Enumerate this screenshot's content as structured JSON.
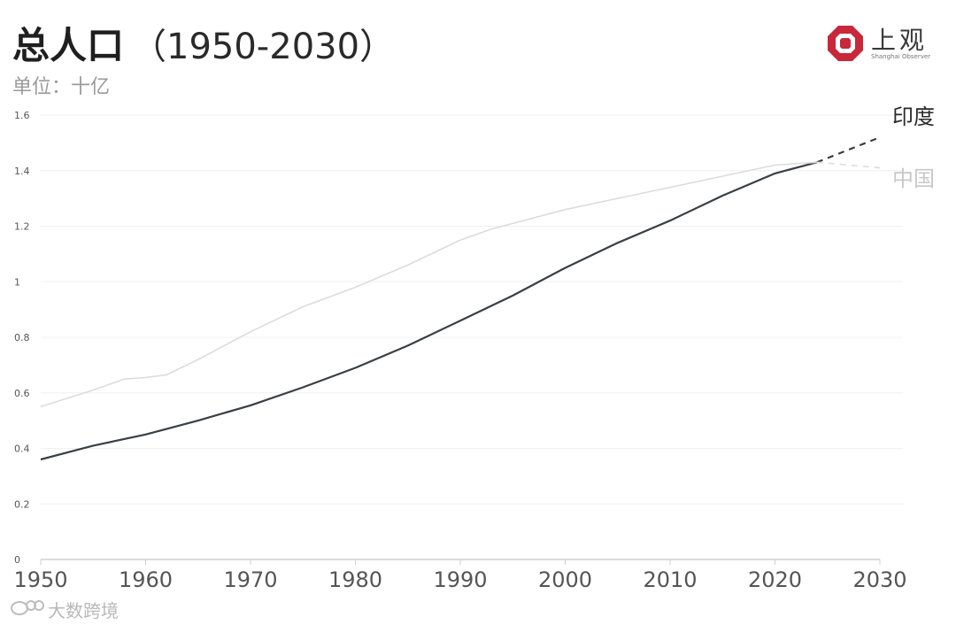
{
  "header": {
    "title": "总人口",
    "title_range": "（1950-2030）",
    "unit": "单位：十亿"
  },
  "logo": {
    "text": "上观",
    "subtext": "Shanghai Observer",
    "color": "#c8283a"
  },
  "watermark": {
    "text": "大数跨境"
  },
  "chart_data": {
    "type": "line",
    "title": "总人口（1950-2030）",
    "ylabel": "单位：十亿",
    "xlim": [
      1950,
      2030
    ],
    "ylim": [
      0,
      1.6
    ],
    "x_ticks": [
      "1950",
      "1960",
      "1970",
      "1980",
      "1990",
      "2000",
      "2010",
      "2020",
      "2030"
    ],
    "y_ticks": [
      "0",
      "0.2",
      "0.4",
      "0.6",
      "0.8",
      "1",
      "1.2",
      "1.4",
      "1.6"
    ],
    "grid": true,
    "series": [
      {
        "name": "印度",
        "color": "#3a3f44",
        "x": [
          1950,
          1955,
          1960,
          1965,
          1970,
          1975,
          1980,
          1985,
          1990,
          1995,
          2000,
          2005,
          2010,
          2015,
          2020,
          2024
        ],
        "y": [
          0.36,
          0.41,
          0.45,
          0.5,
          0.555,
          0.62,
          0.69,
          0.77,
          0.86,
          0.95,
          1.05,
          1.14,
          1.22,
          1.31,
          1.39,
          1.43
        ],
        "projection": {
          "x": [
            2024,
            2030
          ],
          "y": [
            1.43,
            1.52
          ]
        }
      },
      {
        "name": "中国",
        "color": "#dcdcdc",
        "x": [
          1950,
          1955,
          1958,
          1960,
          1962,
          1965,
          1970,
          1975,
          1980,
          1985,
          1990,
          1993,
          1995,
          2000,
          2005,
          2010,
          2015,
          2020,
          2024
        ],
        "y": [
          0.55,
          0.61,
          0.65,
          0.655,
          0.665,
          0.72,
          0.82,
          0.91,
          0.98,
          1.06,
          1.15,
          1.19,
          1.21,
          1.26,
          1.3,
          1.34,
          1.38,
          1.42,
          1.43
        ],
        "projection": {
          "x": [
            2024,
            2030
          ],
          "y": [
            1.43,
            1.41
          ]
        }
      }
    ]
  }
}
